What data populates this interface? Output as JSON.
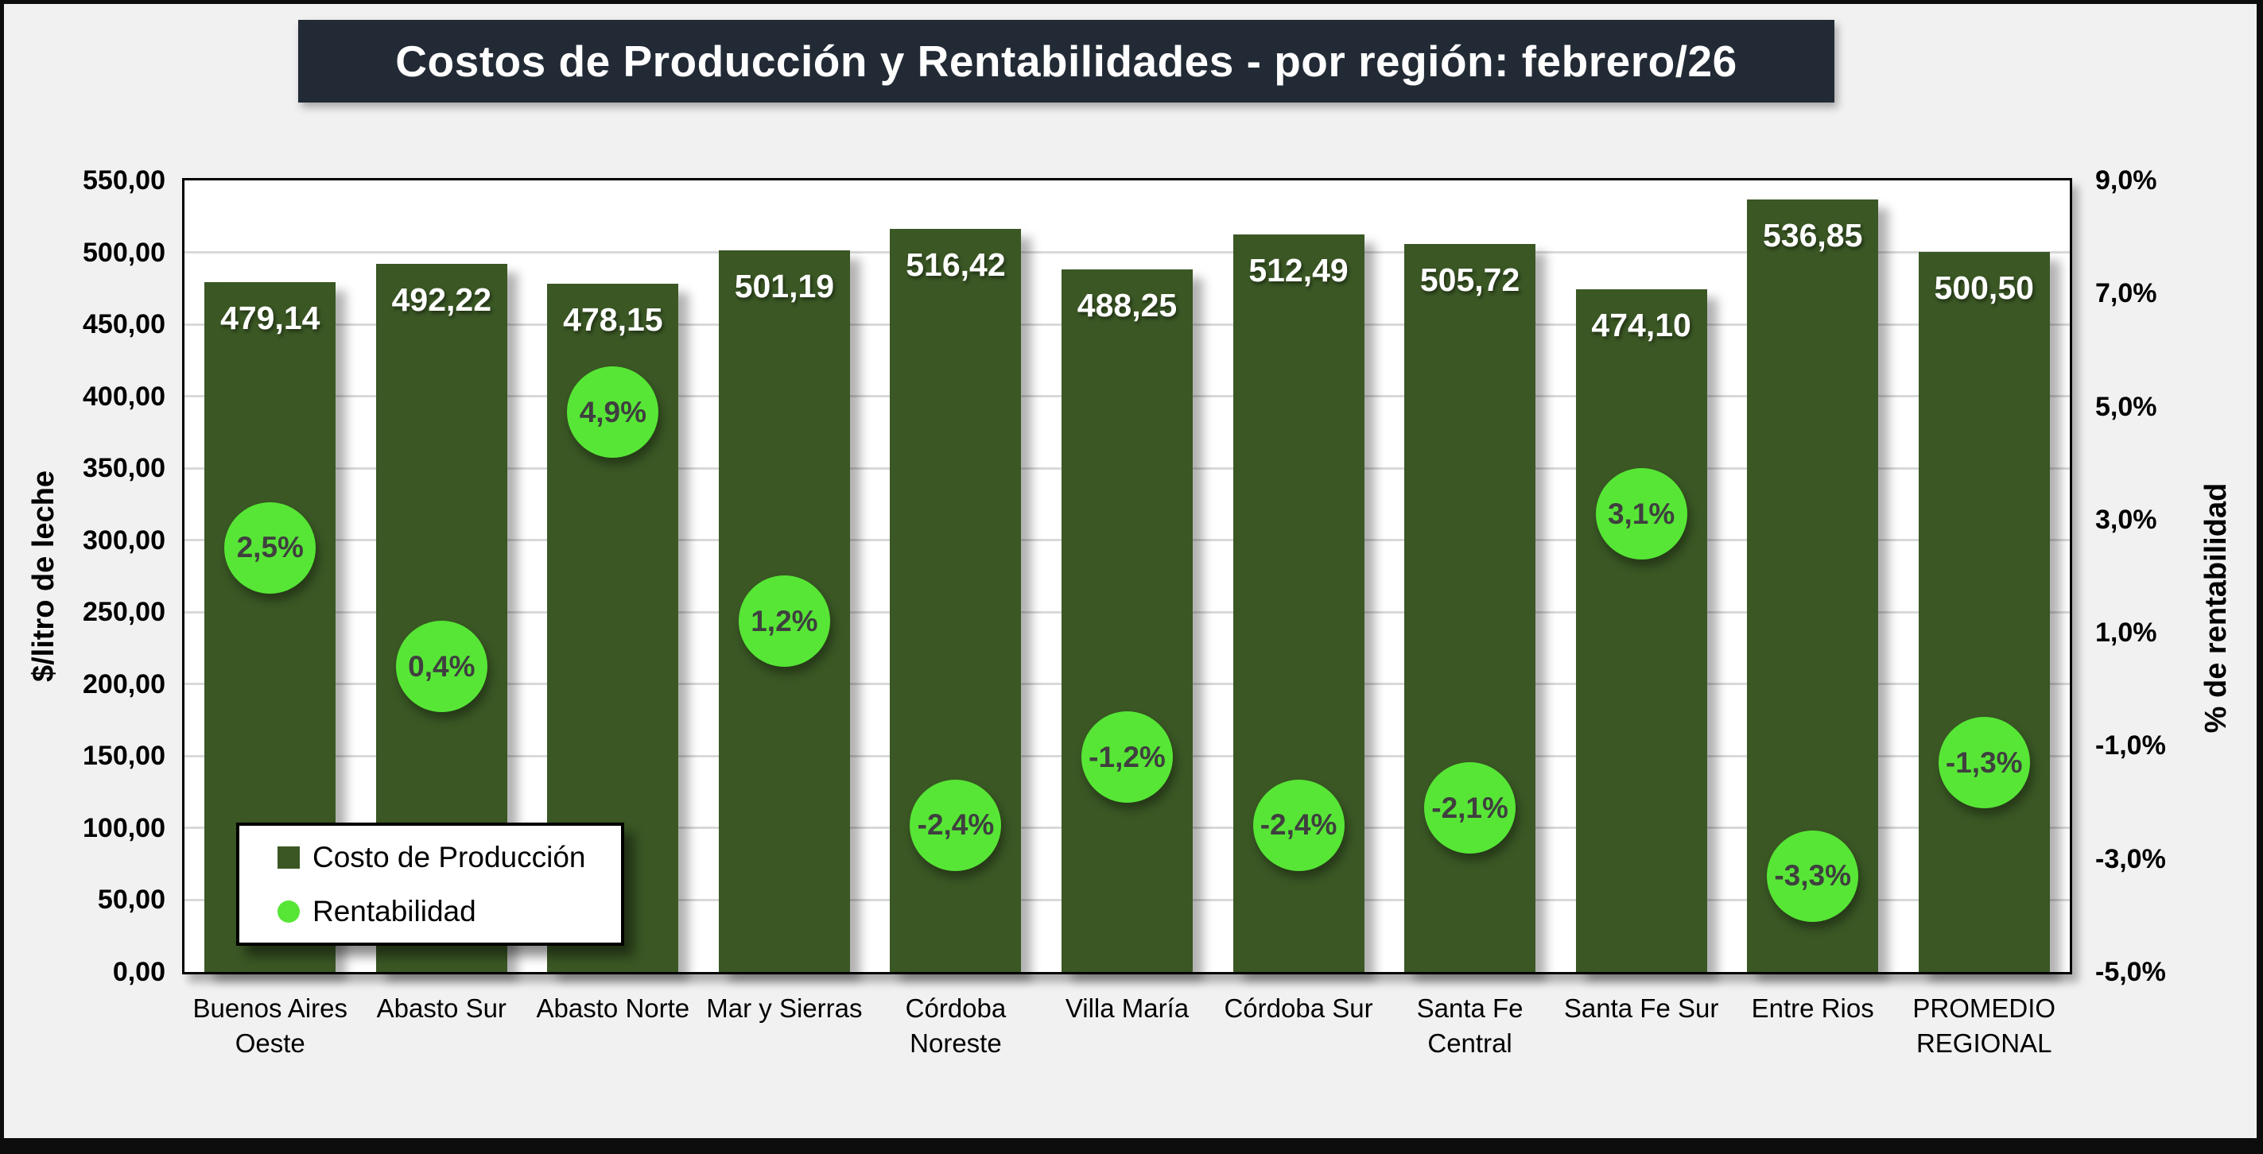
{
  "title": {
    "text": "Costos de Producción y Rentabilidades - por región: febrero/26"
  },
  "chart_data": {
    "type": "bar",
    "title": "Costos de Producción y Rentabilidades - por región: febrero/26",
    "categories": [
      "Buenos Aires Oeste",
      "Abasto Sur",
      "Abasto Norte",
      "Mar y Sierras",
      "Córdoba Noreste",
      "Villa María",
      "Córdoba Sur",
      "Santa Fe Central",
      "Santa Fe Sur",
      "Entre Rios",
      "PROMEDIO REGIONAL"
    ],
    "series": [
      {
        "name": "Costo de Producción",
        "type": "bar",
        "axis": "left",
        "values": [
          479.14,
          492.22,
          478.15,
          501.19,
          516.42,
          488.25,
          512.49,
          505.72,
          474.1,
          536.85,
          500.5
        ],
        "labels": [
          "479,14",
          "492,22",
          "478,15",
          "501,19",
          "516,42",
          "488,25",
          "512,49",
          "505,72",
          "474,10",
          "536,85",
          "500,50"
        ]
      },
      {
        "name": "Rentabilidad",
        "type": "scatter",
        "axis": "right",
        "values": [
          2.5,
          0.4,
          4.9,
          1.2,
          -2.4,
          -1.2,
          -2.4,
          -2.1,
          3.1,
          -3.3,
          -1.3
        ],
        "labels": [
          "2,5%",
          "0,4%",
          "4,9%",
          "1,2%",
          "-2,4%",
          "-1,2%",
          "-2,4%",
          "-2,1%",
          "3,1%",
          "-3,3%",
          "-1,3%"
        ]
      }
    ],
    "left_axis": {
      "title": "$/litro de leche",
      "min": 0,
      "max": 550,
      "step": 50,
      "ticks": [
        "550,00",
        "500,00",
        "450,00",
        "400,00",
        "350,00",
        "300,00",
        "250,00",
        "200,00",
        "150,00",
        "100,00",
        "50,00",
        "0,00"
      ]
    },
    "right_axis": {
      "title": "% de rentabilidad",
      "min": -5,
      "max": 9,
      "step": 2,
      "ticks": [
        "9,0%",
        "7,0%",
        "5,0%",
        "3,0%",
        "1,0%",
        "-1,0%",
        "-3,0%",
        "-5,0%"
      ]
    },
    "legend": {
      "items": [
        "Costo de Producción",
        "Rentabilidad"
      ],
      "position": "inside-bottom-left"
    },
    "grid": true,
    "colors": {
      "bar": "#3a5724",
      "marker": "#57e636",
      "marker_text": "#3f3f3f",
      "bar_label": "#ffffff",
      "title_bg": "#222a35",
      "title_text": "#ffffff",
      "background": "#f1f1f1",
      "plot_bg": "#ffffff",
      "gridline": "#d9d9d9"
    }
  }
}
